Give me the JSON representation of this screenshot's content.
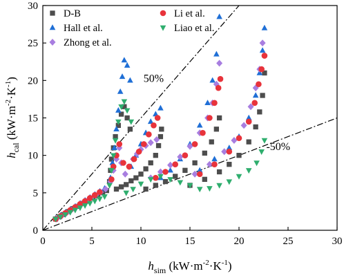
{
  "chart_data": {
    "type": "scatter",
    "xlabel": {
      "main": "h",
      "sub": "sim",
      "unit": "(kW·m",
      "exp1": "-2",
      "mid": "·K",
      "exp2": "-1",
      "close": ")"
    },
    "ylabel": {
      "main": "h",
      "sub": "cal",
      "unit": "(kW·m",
      "exp1": "-2",
      "mid": "·K",
      "exp2": "-1",
      "close": ")"
    },
    "xlim": [
      0,
      30
    ],
    "ylim": [
      0,
      30
    ],
    "xticks": [
      "0",
      "5",
      "10",
      "15",
      "20",
      "25",
      "30"
    ],
    "yticks": [
      "0",
      "5",
      "10",
      "15",
      "20",
      "25",
      "30"
    ],
    "grid": false,
    "legend_position": "top-left",
    "annotations": [
      {
        "text": "50%",
        "x": 11.3,
        "y": 19.8
      },
      {
        "text": "-50%",
        "x": 24.0,
        "y": 10.7
      }
    ],
    "reference_lines": [
      {
        "label": "50%",
        "slope": 1.5
      },
      {
        "label": "-50%",
        "slope": 0.5
      }
    ],
    "series": [
      {
        "name": "D-B",
        "marker": "square",
        "color": "#4d4d4d",
        "points": [
          [
            1.3,
            1.5
          ],
          [
            1.7,
            1.8
          ],
          [
            2.1,
            2.1
          ],
          [
            2.6,
            2.5
          ],
          [
            3.1,
            2.9
          ],
          [
            3.6,
            3.2
          ],
          [
            4.1,
            3.6
          ],
          [
            4.6,
            3.9
          ],
          [
            5.1,
            4.3
          ],
          [
            5.6,
            4.6
          ],
          [
            6.1,
            5.0
          ],
          [
            6.5,
            5.3
          ],
          [
            6.8,
            6.5
          ],
          [
            6.9,
            8.0
          ],
          [
            7.0,
            9.5
          ],
          [
            7.2,
            11.0
          ],
          [
            7.4,
            12.5
          ],
          [
            7.7,
            14.0
          ],
          [
            8.0,
            15.5
          ],
          [
            8.3,
            16.5
          ],
          [
            8.6,
            15.0
          ],
          [
            8.9,
            13.5
          ],
          [
            7.5,
            5.5
          ],
          [
            8.0,
            5.8
          ],
          [
            8.5,
            6.1
          ],
          [
            9.0,
            6.6
          ],
          [
            9.5,
            7.0
          ],
          [
            10.0,
            7.5
          ],
          [
            10.5,
            8.2
          ],
          [
            11.0,
            9.0
          ],
          [
            11.5,
            10.0
          ],
          [
            11.8,
            11.3
          ],
          [
            12.0,
            12.5
          ],
          [
            12.1,
            13.5
          ],
          [
            10.5,
            5.5
          ],
          [
            11.5,
            6.0
          ],
          [
            12.5,
            6.5
          ],
          [
            13.5,
            7.2
          ],
          [
            14.5,
            8.0
          ],
          [
            15.5,
            9.0
          ],
          [
            16.5,
            10.3
          ],
          [
            17.2,
            11.8
          ],
          [
            17.7,
            13.5
          ],
          [
            18.0,
            15.0
          ],
          [
            15.0,
            6.0
          ],
          [
            16.5,
            6.8
          ],
          [
            18.0,
            7.8
          ],
          [
            19.0,
            8.8
          ],
          [
            20.0,
            10.0
          ],
          [
            21.0,
            11.8
          ],
          [
            21.7,
            13.8
          ],
          [
            22.1,
            15.8
          ],
          [
            22.4,
            18.0
          ],
          [
            22.6,
            21.0
          ]
        ]
      },
      {
        "name": "Hall et al.",
        "marker": "triangle-up",
        "color": "#1f6fd6",
        "points": [
          [
            1.3,
            1.6
          ],
          [
            1.8,
            2.0
          ],
          [
            2.3,
            2.4
          ],
          [
            2.8,
            2.8
          ],
          [
            3.3,
            3.2
          ],
          [
            3.8,
            3.6
          ],
          [
            4.3,
            4.0
          ],
          [
            4.8,
            4.4
          ],
          [
            5.3,
            4.8
          ],
          [
            5.8,
            5.2
          ],
          [
            6.3,
            5.6
          ],
          [
            6.9,
            7.0
          ],
          [
            7.1,
            9.0
          ],
          [
            7.3,
            11.0
          ],
          [
            7.5,
            13.5
          ],
          [
            7.7,
            16.0
          ],
          [
            7.9,
            18.5
          ],
          [
            8.1,
            20.5
          ],
          [
            8.3,
            22.7
          ],
          [
            8.6,
            22.0
          ],
          [
            8.9,
            20.0
          ],
          [
            9.0,
            8.5
          ],
          [
            9.5,
            10.0
          ],
          [
            10.0,
            11.5
          ],
          [
            10.5,
            13.0
          ],
          [
            11.0,
            14.5
          ],
          [
            11.5,
            15.5
          ],
          [
            12.0,
            16.3
          ],
          [
            12.0,
            7.0
          ],
          [
            13.0,
            8.0
          ],
          [
            14.0,
            9.5
          ],
          [
            15.0,
            11.5
          ],
          [
            16.0,
            14.0
          ],
          [
            16.8,
            17.0
          ],
          [
            17.3,
            20.0
          ],
          [
            17.7,
            23.5
          ],
          [
            18.0,
            28.5
          ],
          [
            16.0,
            8.0
          ],
          [
            17.5,
            9.5
          ],
          [
            19.0,
            11.0
          ],
          [
            20.0,
            12.5
          ],
          [
            21.0,
            15.0
          ],
          [
            21.7,
            18.0
          ],
          [
            22.1,
            21.0
          ],
          [
            22.4,
            24.0
          ],
          [
            22.6,
            27.0
          ]
        ]
      },
      {
        "name": "Zhong et al.",
        "marker": "diamond",
        "color": "#a87ee0",
        "points": [
          [
            1.4,
            1.5
          ],
          [
            1.9,
            1.9
          ],
          [
            2.4,
            2.3
          ],
          [
            2.9,
            2.7
          ],
          [
            3.4,
            3.1
          ],
          [
            3.9,
            3.5
          ],
          [
            4.4,
            3.9
          ],
          [
            4.9,
            4.3
          ],
          [
            5.4,
            4.7
          ],
          [
            5.9,
            5.1
          ],
          [
            6.4,
            5.5
          ],
          [
            6.9,
            6.5
          ],
          [
            7.2,
            8.0
          ],
          [
            7.5,
            9.5
          ],
          [
            7.8,
            11.0
          ],
          [
            8.0,
            9.0
          ],
          [
            8.4,
            7.5
          ],
          [
            8.8,
            8.5
          ],
          [
            9.2,
            9.5
          ],
          [
            9.6,
            10.2
          ],
          [
            10.0,
            10.8
          ],
          [
            10.5,
            11.3
          ],
          [
            11.0,
            11.7
          ],
          [
            11.6,
            12.1
          ],
          [
            11.0,
            7.0
          ],
          [
            12.0,
            7.8
          ],
          [
            13.0,
            8.7
          ],
          [
            14.0,
            9.8
          ],
          [
            15.0,
            11.2
          ],
          [
            16.0,
            13.0
          ],
          [
            16.8,
            15.0
          ],
          [
            17.3,
            17.0
          ],
          [
            17.7,
            19.5
          ],
          [
            18.0,
            22.3
          ],
          [
            15.5,
            7.5
          ],
          [
            17.0,
            8.8
          ],
          [
            18.5,
            10.5
          ],
          [
            19.5,
            12.0
          ],
          [
            20.5,
            14.0
          ],
          [
            21.2,
            16.5
          ],
          [
            21.7,
            19.0
          ],
          [
            22.1,
            21.5
          ],
          [
            22.4,
            25.0
          ]
        ]
      },
      {
        "name": "Li et al.",
        "marker": "circle",
        "color": "#e8333b",
        "points": [
          [
            1.3,
            1.5
          ],
          [
            1.8,
            1.9
          ],
          [
            2.3,
            2.3
          ],
          [
            2.8,
            2.7
          ],
          [
            3.3,
            3.1
          ],
          [
            3.8,
            3.5
          ],
          [
            4.3,
            3.9
          ],
          [
            4.8,
            4.3
          ],
          [
            5.3,
            4.7
          ],
          [
            5.8,
            5.1
          ],
          [
            7.0,
            6.8
          ],
          [
            7.2,
            8.5
          ],
          [
            7.5,
            10.0
          ],
          [
            7.8,
            11.5
          ],
          [
            8.2,
            9.0
          ],
          [
            8.8,
            8.5
          ],
          [
            9.3,
            9.5
          ],
          [
            9.8,
            10.5
          ],
          [
            10.3,
            11.5
          ],
          [
            10.8,
            12.8
          ],
          [
            11.3,
            14.0
          ],
          [
            11.7,
            15.0
          ],
          [
            11.5,
            7.0
          ],
          [
            12.5,
            7.8
          ],
          [
            13.5,
            8.8
          ],
          [
            14.5,
            10.0
          ],
          [
            15.5,
            11.5
          ],
          [
            16.3,
            13.0
          ],
          [
            17.0,
            15.0
          ],
          [
            17.5,
            17.0
          ],
          [
            17.9,
            19.0
          ],
          [
            18.1,
            20.2
          ],
          [
            16.0,
            7.5
          ],
          [
            17.5,
            8.8
          ],
          [
            19.0,
            10.5
          ],
          [
            20.0,
            12.3
          ],
          [
            21.0,
            14.5
          ],
          [
            21.6,
            17.0
          ],
          [
            22.0,
            19.5
          ],
          [
            22.3,
            21.5
          ],
          [
            22.6,
            23.3
          ]
        ]
      },
      {
        "name": "Liao et al.",
        "marker": "triangle-down",
        "color": "#2fae6e",
        "points": [
          [
            1.3,
            1.5
          ],
          [
            1.8,
            1.8
          ],
          [
            2.3,
            2.1
          ],
          [
            2.8,
            2.4
          ],
          [
            3.3,
            2.7
          ],
          [
            3.8,
            3.0
          ],
          [
            4.3,
            3.3
          ],
          [
            4.8,
            3.6
          ],
          [
            5.3,
            3.9
          ],
          [
            5.8,
            4.2
          ],
          [
            6.3,
            4.5
          ],
          [
            6.8,
            6.0
          ],
          [
            7.0,
            8.0
          ],
          [
            7.2,
            10.0
          ],
          [
            7.4,
            12.0
          ],
          [
            7.7,
            14.5
          ],
          [
            8.0,
            16.5
          ],
          [
            8.3,
            17.2
          ],
          [
            8.6,
            16.0
          ],
          [
            9.0,
            14.5
          ],
          [
            8.5,
            5.0
          ],
          [
            9.2,
            5.5
          ],
          [
            10.0,
            6.2
          ],
          [
            11.0,
            6.8
          ],
          [
            12.0,
            7.2
          ],
          [
            13.0,
            6.8
          ],
          [
            14.0,
            6.4
          ],
          [
            15.0,
            6.0
          ],
          [
            16.0,
            5.5
          ],
          [
            17.0,
            5.6
          ],
          [
            18.0,
            6.0
          ],
          [
            19.0,
            6.5
          ],
          [
            20.0,
            7.2
          ],
          [
            21.0,
            8.0
          ],
          [
            21.8,
            9.0
          ],
          [
            22.3,
            10.5
          ],
          [
            22.6,
            12.0
          ]
        ]
      }
    ]
  }
}
